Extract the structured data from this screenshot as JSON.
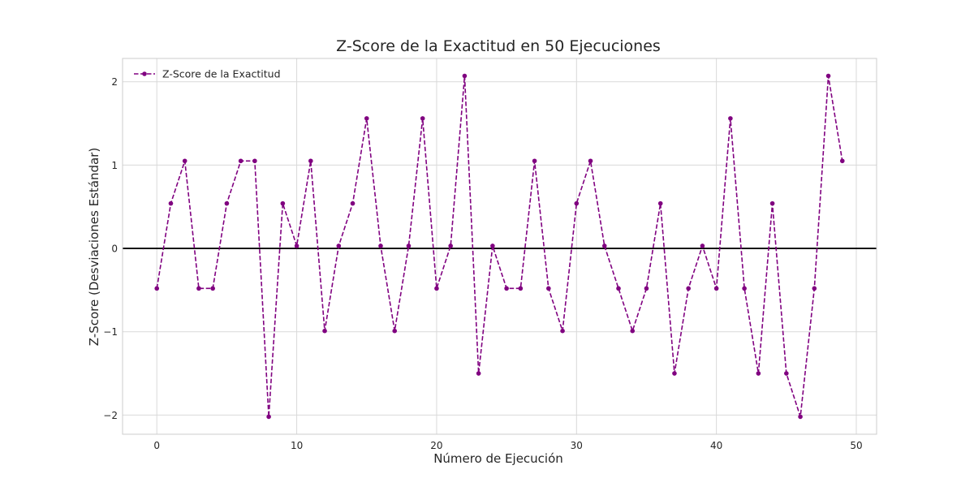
{
  "chart_data": {
    "type": "line",
    "title": "Z-Score de la Exactitud en 50 Ejecuciones",
    "xlabel": "Número de Ejecución",
    "ylabel": "Z-Score (Desviaciones Estándar)",
    "xlim": [
      -2.45,
      51.45
    ],
    "ylim": [
      -2.23,
      2.28
    ],
    "xticks": [
      0,
      10,
      20,
      30,
      40,
      50
    ],
    "xtick_labels": [
      "0",
      "10",
      "20",
      "30",
      "40",
      "50"
    ],
    "yticks": [
      -2,
      -1,
      0,
      1,
      2
    ],
    "ytick_labels": [
      "−2",
      "−1",
      "0",
      "1",
      "2"
    ],
    "grid": true,
    "legend_position": "top-left",
    "reference_line": {
      "y": 0,
      "color": "#000000"
    },
    "series": [
      {
        "name": "Z-Score de la Exactitud",
        "color": "#800080",
        "line_style": "dashed",
        "marker": "circle",
        "x": [
          0,
          1,
          2,
          3,
          4,
          5,
          6,
          7,
          8,
          9,
          10,
          11,
          12,
          13,
          14,
          15,
          16,
          17,
          18,
          19,
          20,
          21,
          22,
          23,
          24,
          25,
          26,
          27,
          28,
          29,
          30,
          31,
          32,
          33,
          34,
          35,
          36,
          37,
          38,
          39,
          40,
          41,
          42,
          43,
          44,
          45,
          46,
          47,
          48,
          49
        ],
        "values": [
          -0.48,
          0.54,
          1.05,
          -0.48,
          -0.48,
          0.54,
          1.05,
          1.05,
          -2.02,
          0.54,
          0.03,
          1.05,
          -0.99,
          0.03,
          0.54,
          1.56,
          0.03,
          -0.99,
          0.03,
          1.56,
          -0.48,
          0.03,
          2.07,
          -1.5,
          0.03,
          -0.48,
          -0.48,
          1.05,
          -0.48,
          -0.99,
          0.54,
          1.05,
          0.03,
          -0.48,
          -0.99,
          -0.48,
          0.54,
          -1.5,
          -0.48,
          0.03,
          -0.48,
          1.56,
          -0.48,
          -1.5,
          0.54,
          -1.5,
          -2.02,
          -0.48,
          2.07,
          1.05
        ]
      }
    ]
  }
}
